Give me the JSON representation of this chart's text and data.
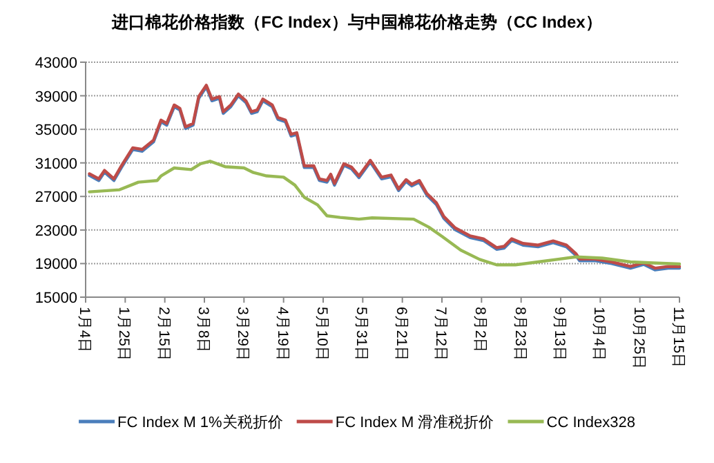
{
  "chart_data": {
    "type": "line",
    "title": "进口棉花价格指数（FC Index）与中国棉花价格走势（CC Index）",
    "x": [
      "--01-06",
      "--01-11",
      "--01-14",
      "--01-19",
      "--01-23",
      "--01-29",
      "--02-03",
      "--02-09",
      "--02-13",
      "--02-16",
      "--02-20",
      "--02-23",
      "--02-26",
      "--03-02",
      "--03-05",
      "--03-09",
      "--03-12",
      "--03-16",
      "--03-18",
      "--03-22",
      "--03-26",
      "--03-30",
      "--04-02",
      "--04-05",
      "--04-08",
      "--04-13",
      "--04-16",
      "--04-20",
      "--04-23",
      "--04-26",
      "--04-30",
      "--05-05",
      "--05-08",
      "--05-12",
      "--05-14",
      "--05-16",
      "--05-21",
      "--05-25",
      "--05-29",
      "--06-04",
      "--06-10",
      "--06-15",
      "--06-19",
      "--06-23",
      "--06-26",
      "--06-30",
      "--07-04",
      "--07-09",
      "--07-13",
      "--07-19",
      "--07-27",
      "--08-03",
      "--08-10",
      "--08-14",
      "--08-18",
      "--08-24",
      "--09-01",
      "--09-09",
      "--09-16",
      "--09-21",
      "--09-23",
      "--10-01",
      "--10-10",
      "--10-20",
      "--10-27",
      "--11-02",
      "--11-09",
      "--11-15"
    ],
    "series": [
      {
        "name": "FC Index M   1%关税折价",
        "color": "#4a7ebb",
        "values": [
          29500,
          28900,
          29900,
          28900,
          30450,
          32600,
          32400,
          33500,
          35900,
          35500,
          37700,
          37300,
          35100,
          35500,
          38700,
          40050,
          38400,
          38700,
          36900,
          37700,
          39000,
          38200,
          36900,
          37100,
          38400,
          37700,
          36200,
          35900,
          34200,
          34400,
          30450,
          30450,
          28900,
          28700,
          29450,
          28350,
          30700,
          30300,
          29250,
          31100,
          29100,
          29350,
          27700,
          28800,
          28250,
          28700,
          27150,
          26050,
          24400,
          23050,
          22100,
          21750,
          20700,
          20850,
          21750,
          21200,
          21000,
          21500,
          21000,
          20000,
          19350,
          19350,
          19000,
          18450,
          18900,
          18250,
          18450,
          18450
        ]
      },
      {
        "name": "FC Index M   滑准税折价",
        "color": "#be4b48",
        "values": [
          29700,
          29100,
          30100,
          29100,
          30650,
          32800,
          32600,
          33700,
          36100,
          35700,
          37900,
          37500,
          35300,
          35700,
          38900,
          40250,
          38600,
          38900,
          37100,
          37900,
          39200,
          38400,
          37100,
          37300,
          38600,
          37900,
          36400,
          36100,
          34400,
          34600,
          30650,
          30650,
          29100,
          28900,
          29650,
          28550,
          30900,
          30500,
          29450,
          31300,
          29300,
          29550,
          27900,
          29000,
          28450,
          28900,
          27350,
          26250,
          24600,
          23250,
          22300,
          21950,
          20900,
          21050,
          21950,
          21400,
          21200,
          21700,
          21200,
          20200,
          19550,
          19550,
          19200,
          18650,
          19100,
          18450,
          18650,
          18650
        ]
      },
      {
        "name": "CC Index328",
        "color": "#98b954",
        "x": [
          "--01-06",
          "--01-22",
          "--02-01",
          "--02-11",
          "--02-13",
          "--02-20",
          "--03-01",
          "--03-06",
          "--03-11",
          "--03-19",
          "--03-29",
          "--04-03",
          "--04-10",
          "--04-19",
          "--04-25",
          "--04-30",
          "--05-07",
          "--05-12",
          "--05-19",
          "--05-29",
          "--06-05",
          "--06-27",
          "--07-05",
          "--07-12",
          "--07-22",
          "--08-01",
          "--08-10",
          "--08-20",
          "--09-01",
          "--09-11",
          "--09-21",
          "--10-05",
          "--10-20",
          "--10-30",
          "--11-15"
        ],
        "values": [
          27550,
          27800,
          28700,
          28900,
          29450,
          30400,
          30200,
          30900,
          31200,
          30550,
          30400,
          29850,
          29450,
          29300,
          28350,
          26900,
          26000,
          24700,
          24500,
          24300,
          24450,
          24300,
          23350,
          22250,
          20600,
          19500,
          18850,
          18850,
          19200,
          19500,
          19800,
          19650,
          19200,
          19100,
          18950
        ]
      }
    ],
    "xlim": [
      "--01-04",
      "--11-15"
    ],
    "xticks": [
      {
        "value": "--01-04",
        "label": "1月4日"
      },
      {
        "value": "--01-25",
        "label": "1月25日"
      },
      {
        "value": "--02-15",
        "label": "2月15日"
      },
      {
        "value": "--03-08",
        "label": "3月8日"
      },
      {
        "value": "--03-29",
        "label": "3月29日"
      },
      {
        "value": "--04-19",
        "label": "4月19日"
      },
      {
        "value": "--05-10",
        "label": "5月10日"
      },
      {
        "value": "--05-31",
        "label": "5月31日"
      },
      {
        "value": "--06-21",
        "label": "6月21日"
      },
      {
        "value": "--07-12",
        "label": "7月12日"
      },
      {
        "value": "--08-02",
        "label": "8月2日"
      },
      {
        "value": "--08-23",
        "label": "8月23日"
      },
      {
        "value": "--09-13",
        "label": "9月13日"
      },
      {
        "value": "--10-04",
        "label": "10月4日"
      },
      {
        "value": "--10-25",
        "label": "10月25日"
      },
      {
        "value": "--11-15",
        "label": "11月15日"
      }
    ],
    "ylim": [
      15000,
      43000
    ],
    "yticks": [
      15000,
      19000,
      23000,
      27000,
      31000,
      35000,
      39000,
      43000
    ],
    "grid": "y",
    "legend": "bottom"
  }
}
